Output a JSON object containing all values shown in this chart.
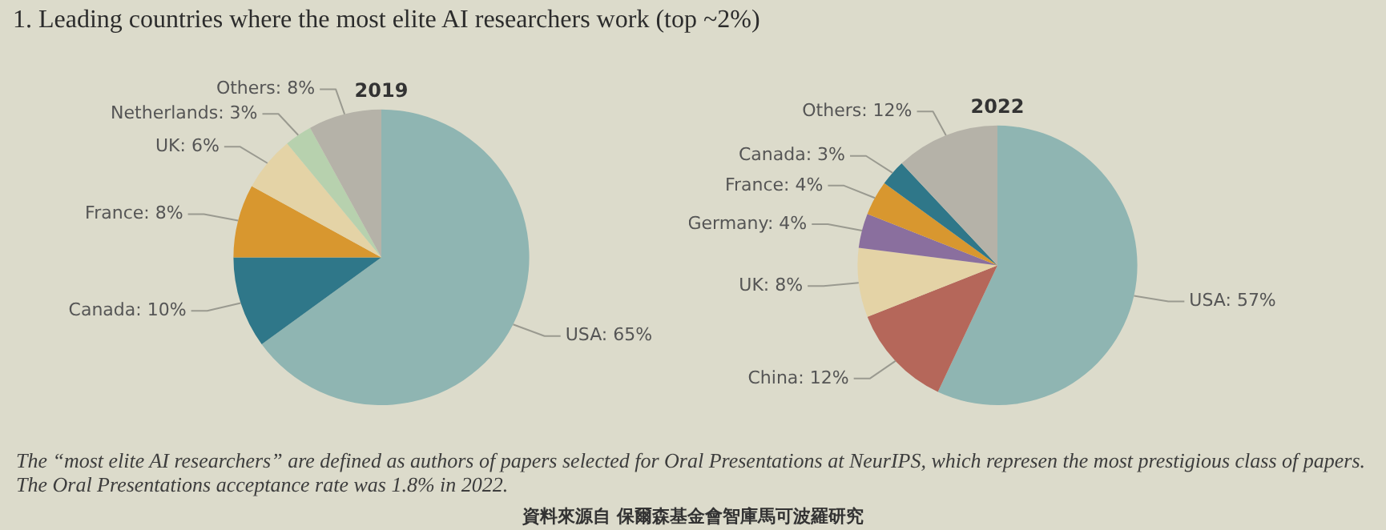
{
  "chart_data": [
    {
      "type": "pie",
      "title": "1. Leading countries where the most elite AI researchers work (top ~2%)",
      "subtitle": "2019",
      "categories": [
        "USA: 65%",
        "Canada: 10%",
        "France: 8%",
        "UK: 6%",
        "Netherlands: 3%",
        "Others: 8%"
      ],
      "values": [
        65,
        10,
        8,
        6,
        3,
        8
      ],
      "colors": [
        "#8fb5b2",
        "#2f7789",
        "#d8972f",
        "#e4d3a6",
        "#b7d1ae",
        "#b5b2a8"
      ],
      "legend": false
    },
    {
      "type": "pie",
      "subtitle": "2022",
      "categories": [
        "USA: 57%",
        "China: 12%",
        "UK: 8%",
        "Germany: 4%",
        "France: 4%",
        "Canada: 3%",
        "Others: 12%"
      ],
      "values": [
        57,
        12,
        8,
        4,
        4,
        3,
        12
      ],
      "colors": [
        "#8fb5b2",
        "#b5675a",
        "#e4d3a6",
        "#8a6f9e",
        "#d8972f",
        "#2f7789",
        "#b5b2a8"
      ],
      "legend": false,
      "annotations": [
        "The “most elite AI researchers” are defined as authors of papers selected for Oral Presentations at NeurIPS, which represen the most prestigious class of papers. The Oral Presentations acceptance rate was 1.8% in 2022.",
        "資料來源自 保爾森基金會智庫馬可波羅研究"
      ]
    }
  ]
}
